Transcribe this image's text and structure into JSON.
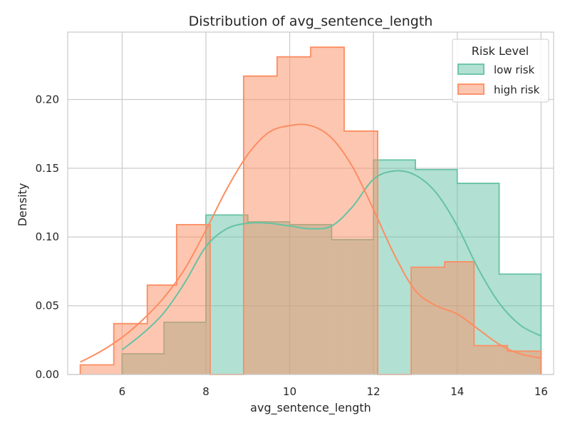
{
  "chart_data": {
    "type": "histogram",
    "title": "Distribution of avg_sentence_length",
    "xlabel": "avg_sentence_length",
    "ylabel": "Density",
    "xlim": [
      4.7,
      16.3
    ],
    "ylim": [
      0,
      0.249
    ],
    "xticks": [
      6,
      8,
      10,
      12,
      14,
      16
    ],
    "yticks": [
      0.0,
      0.05,
      0.1,
      0.15,
      0.2
    ],
    "ytick_labels": [
      "0.00",
      "0.05",
      "0.10",
      "0.15",
      "0.20"
    ],
    "grid": true,
    "legend": {
      "title": "Risk Level",
      "placement": "top-right"
    },
    "series": [
      {
        "name": "low risk",
        "color": "#66c2a5",
        "bin_edges": [
          6.0,
          7.0,
          8.0,
          9.0,
          10.0,
          11.0,
          12.0,
          13.0,
          14.0,
          15.0,
          16.0
        ],
        "values": [
          0.015,
          0.038,
          0.116,
          0.111,
          0.109,
          0.098,
          0.156,
          0.149,
          0.139,
          0.073
        ],
        "kde_x": [
          6.0,
          6.5,
          7.0,
          7.5,
          8.0,
          8.5,
          9.0,
          9.5,
          10.0,
          10.5,
          11.0,
          11.5,
          12.0,
          12.5,
          13.0,
          13.5,
          14.0,
          14.5,
          15.0,
          15.5,
          16.0
        ],
        "kde_y": [
          0.018,
          0.03,
          0.045,
          0.067,
          0.093,
          0.106,
          0.11,
          0.11,
          0.108,
          0.106,
          0.108,
          0.122,
          0.142,
          0.148,
          0.145,
          0.132,
          0.108,
          0.077,
          0.052,
          0.036,
          0.028
        ]
      },
      {
        "name": "high risk",
        "color": "#fc8d62",
        "bin_edges": [
          5.0,
          5.8,
          6.6,
          7.3,
          8.1,
          8.9,
          9.7,
          10.5,
          11.3,
          12.1,
          12.9,
          13.7,
          14.4,
          15.2,
          16.0
        ],
        "values": [
          0.007,
          0.037,
          0.065,
          0.109,
          0.0,
          0.217,
          0.231,
          0.238,
          0.177,
          0.0,
          0.078,
          0.082,
          0.021,
          0.017
        ],
        "kde_x": [
          5.0,
          5.5,
          6.0,
          6.5,
          7.0,
          7.5,
          8.0,
          8.5,
          9.0,
          9.5,
          10.0,
          10.5,
          11.0,
          11.5,
          12.0,
          12.5,
          13.0,
          13.5,
          14.0,
          14.5,
          15.0,
          15.5,
          16.0
        ],
        "kde_y": [
          0.009,
          0.017,
          0.027,
          0.04,
          0.056,
          0.077,
          0.105,
          0.135,
          0.16,
          0.176,
          0.181,
          0.181,
          0.172,
          0.151,
          0.12,
          0.087,
          0.061,
          0.05,
          0.044,
          0.033,
          0.022,
          0.015,
          0.012
        ]
      }
    ]
  }
}
